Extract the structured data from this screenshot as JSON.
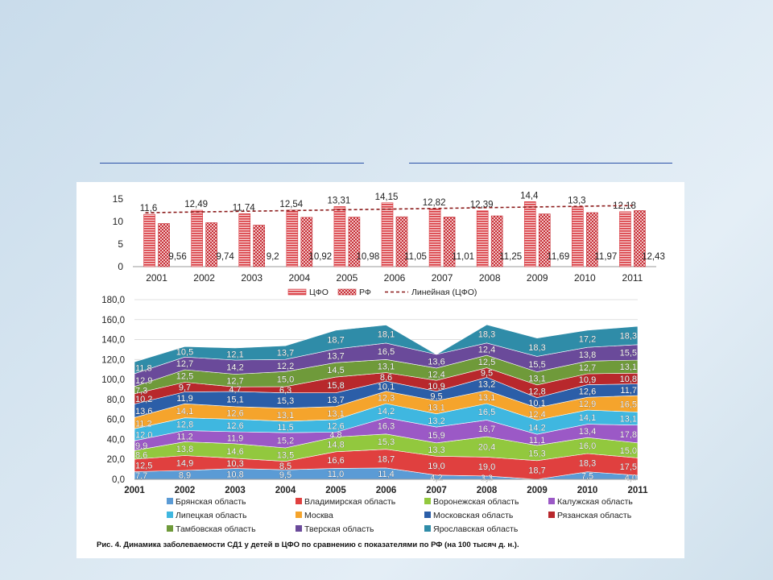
{
  "caption": "Рис. 4. Динамика заболеваемости СД1 у детей в ЦФО по сравнению с показателями по РФ (на 100 тысяч д. н.).",
  "chart_data": [
    {
      "type": "bar",
      "categories": [
        "2001",
        "2002",
        "2003",
        "2004",
        "2005",
        "2006",
        "2007",
        "2008",
        "2009",
        "2010",
        "2011"
      ],
      "ylim": [
        0,
        15
      ],
      "yticks": [
        0,
        5,
        10,
        15
      ],
      "series": [
        {
          "name": "ЦФО",
          "values": [
            11.6,
            12.49,
            11.74,
            12.54,
            13.31,
            14.15,
            12.82,
            12.39,
            14.4,
            13.3,
            12.18
          ],
          "labels": [
            "11,6",
            "12,49",
            "11,74",
            "12,54",
            "13,31",
            "14,15",
            "12,82",
            "12,39",
            "14,4",
            "13,3",
            "12,18"
          ],
          "color": "#d9383f"
        },
        {
          "name": "РФ",
          "values": [
            9.56,
            9.74,
            9.2,
            10.92,
            10.98,
            11.05,
            11.01,
            11.25,
            11.69,
            11.97,
            12.43
          ],
          "labels": [
            "9,56",
            "9,74",
            "9,2",
            "10,92",
            "10,98",
            "11,05",
            "11,01",
            "11,25",
            "11,69",
            "11,97",
            "12,43"
          ],
          "color": "#c62f36"
        }
      ],
      "trendline": {
        "name": "Линейная (ЦФО)",
        "start": 11.95,
        "end": 13.55,
        "color": "#8b1a1a"
      },
      "legend_position": "bottom"
    },
    {
      "type": "area",
      "stacked": true,
      "categories": [
        "2001",
        "2002",
        "2003",
        "2004",
        "2005",
        "2006",
        "2007",
        "2008",
        "2009",
        "2010",
        "2011"
      ],
      "ylim": [
        0,
        180
      ],
      "yticks": [
        "0,0",
        "20,0",
        "40,0",
        "60,0",
        "80,0",
        "100,0",
        "120,0",
        "140,0",
        "160,0",
        "180,0"
      ],
      "series": [
        {
          "name": "Брянская область",
          "color": "#5b9bd5",
          "values": [
            7.7,
            8.9,
            10.8,
            9.5,
            11.0,
            11.4,
            4.2,
            3.3,
            0,
            7.5,
            4.0
          ],
          "labels": [
            "7,7",
            "8,9",
            "10,8",
            "9,5",
            "11,0",
            "11,4",
            "4,2",
            "3,3",
            "",
            "7,5",
            "4,0"
          ]
        },
        {
          "name": "Владимирская область",
          "color": "#e0403f",
          "values": [
            12.5,
            14.9,
            10.3,
            8.5,
            16.6,
            18.7,
            19.0,
            19.0,
            18.7,
            18.3,
            17.5
          ],
          "labels": [
            "12,5",
            "14,9",
            "10,3",
            "8,5",
            "16,6",
            "18,7",
            "19,0",
            "19,0",
            "18,7",
            "18,3",
            "17,5"
          ]
        },
        {
          "name": "Воронежская область",
          "color": "#92c83e",
          "values": [
            8.6,
            13.8,
            14.6,
            13.5,
            14.8,
            15.3,
            13.3,
            20.4,
            15.3,
            16.0,
            15.0
          ],
          "labels": [
            "8,6",
            "13,8",
            "14,6",
            "13,5",
            "14,8",
            "15,3",
            "13,3",
            "20,4",
            "15,3",
            "16,0",
            "15,0"
          ]
        },
        {
          "name": "Калужская область",
          "color": "#9b59c6",
          "values": [
            9.9,
            11.2,
            11.9,
            15.2,
            4.8,
            16.3,
            15.9,
            16.7,
            11.1,
            13.4,
            17.8
          ],
          "labels": [
            "9,9",
            "11,2",
            "11,9",
            "15,2",
            "4,8",
            "16,3",
            "15,9",
            "16,7",
            "11,1",
            "13,4",
            "17,8"
          ]
        },
        {
          "name": "Липецкая область",
          "color": "#3fb7e0",
          "values": [
            12.0,
            12.8,
            12.6,
            11.5,
            12.6,
            14.2,
            13.2,
            16.5,
            14.2,
            14.1,
            13.1
          ],
          "labels": [
            "12,0",
            "12,8",
            "12,6",
            "11,5",
            "12,6",
            "14,2",
            "13,2",
            "16,5",
            "14,2",
            "14,1",
            "13,1"
          ]
        },
        {
          "name": "Москва",
          "color": "#f5a42c",
          "values": [
            11.2,
            14.1,
            12.6,
            13.1,
            13.1,
            12.3,
            13.1,
            13.1,
            12.4,
            12.9,
            16.5
          ],
          "labels": [
            "11,2",
            "14,1",
            "12,6",
            "13,1",
            "13,1",
            "12,3",
            "13,1",
            "13,1",
            "12,4",
            "12,9",
            "16,5"
          ]
        },
        {
          "name": "Московская область",
          "color": "#2b5ea8",
          "values": [
            13.6,
            11.9,
            15.1,
            15.3,
            13.7,
            10.1,
            9.5,
            13.2,
            10.1,
            12.6,
            11.7
          ],
          "labels": [
            "13,6",
            "11,9",
            "15,1",
            "15,3",
            "13,7",
            "10,1",
            "9,5",
            "13,2",
            "10,1",
            "12,6",
            "11,7"
          ]
        },
        {
          "name": "Рязанская область",
          "color": "#b8282c",
          "values": [
            10.2,
            9.7,
            4.7,
            6.3,
            15.8,
            8.6,
            10.9,
            9.5,
            12.8,
            10.9,
            10.8
          ],
          "labels": [
            "10,2",
            "9,7",
            "4,7",
            "6,3",
            "15,8",
            "8,6",
            "10,9",
            "9,5",
            "12,8",
            "10,9",
            "10,8"
          ]
        },
        {
          "name": "Тамбовская область",
          "color": "#6f9a3a",
          "values": [
            7.3,
            12.5,
            12.7,
            15.0,
            14.5,
            13.1,
            12.4,
            12.5,
            13.1,
            12.7,
            13.1
          ],
          "labels": [
            "7,3",
            "12,5",
            "12,7",
            "15,0",
            "14,5",
            "13,1",
            "12,4",
            "12,5",
            "13,1",
            "12,7",
            "13,1"
          ]
        },
        {
          "name": "Тверская область",
          "color": "#6a4a9a",
          "values": [
            12.9,
            12.7,
            14.2,
            12.2,
            13.7,
            16.5,
            13.6,
            12.4,
            15.5,
            13.8,
            15.5
          ],
          "labels": [
            "12,9",
            "12,7",
            "14,2",
            "12,2",
            "13,7",
            "16,5",
            "13,6",
            "12,4",
            "15,5",
            "13,8",
            "15,5"
          ]
        },
        {
          "name": "Ярославская область",
          "color": "#2f8ca8",
          "values": [
            11.8,
            10.5,
            12.1,
            13.7,
            18.7,
            18.1,
            0,
            18.3,
            18.3,
            17.2,
            18.3
          ],
          "labels": [
            "11,8",
            "10,5",
            "12,1",
            "13,7",
            "18,7",
            "18,1",
            "",
            "18,3",
            "18,3",
            "17,2",
            "18,3"
          ]
        }
      ],
      "legend_position": "bottom"
    }
  ]
}
